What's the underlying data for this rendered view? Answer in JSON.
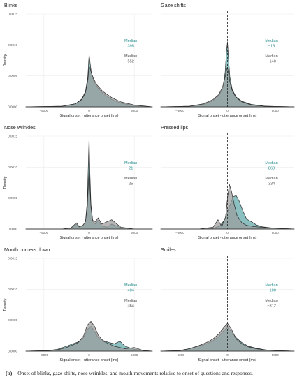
{
  "caption": {
    "label": "(b)",
    "text": "Onset of blinks, gaze shifts, nose wrinkles, and mouth movements relative to onset of questions and responses."
  },
  "colors": {
    "teal_fill": "#5fa8a8",
    "teal_text": "#2a8f8f",
    "grey_fill": "#9b9b9b",
    "grey_text": "#555555",
    "line": "#2a2a2a"
  },
  "chart_data": [
    {
      "type": "area",
      "title": "Blinks",
      "xlabel": "Signal onset - utterance onset (ms)",
      "ylabel": "Density",
      "xlim": [
        -7000,
        7000
      ],
      "ylim": [
        0,
        0.0015
      ],
      "xticks": [
        -5000,
        0,
        5000
      ],
      "xtick_labels": [
        "−5000",
        "0",
        "5000"
      ],
      "yticks": [
        0,
        0.0005,
        0.001,
        0.0015
      ],
      "ytick_labels": [
        "0.0000",
        "0.0005",
        "0.0010",
        "0.0015"
      ],
      "median_labels": [
        {
          "title": "Median",
          "value": "395",
          "color": "teal"
        },
        {
          "title": "Median",
          "value": "552",
          "color": "grey"
        }
      ],
      "series": [
        {
          "color": "teal",
          "x": [
            -7000,
            -3000,
            -1500,
            -800,
            -400,
            -150,
            0,
            100,
            250,
            500,
            900,
            1500,
            2500,
            3500,
            5000,
            7000
          ],
          "y": [
            0,
            1e-05,
            5e-05,
            0.00013,
            0.00025,
            0.00048,
            0.00085,
            0.00072,
            0.00055,
            0.00042,
            0.00032,
            0.00022,
            0.00012,
            6e-05,
            2e-05,
            0
          ]
        },
        {
          "color": "grey",
          "x": [
            -7000,
            -3000,
            -1500,
            -800,
            -400,
            -150,
            0,
            100,
            250,
            500,
            900,
            1500,
            2500,
            3500,
            5000,
            7000
          ],
          "y": [
            0,
            1e-05,
            5e-05,
            0.00012,
            0.00023,
            0.00042,
            0.00065,
            0.00062,
            0.00055,
            0.00045,
            0.00035,
            0.00025,
            0.00015,
            8e-05,
            3e-05,
            0
          ]
        }
      ]
    },
    {
      "type": "area",
      "title": "Gaze shifts",
      "xlabel": "Signal onset - utterance onset (ms)",
      "ylabel": "",
      "xlim": [
        -7000,
        7000
      ],
      "ylim": [
        0,
        0.0015
      ],
      "xticks": [
        -5000,
        0,
        5000
      ],
      "xtick_labels": [
        "−5000",
        "0",
        "5000"
      ],
      "yticks": [],
      "ytick_labels": [],
      "median_labels": [
        {
          "title": "Median",
          "value": "−18",
          "color": "teal"
        },
        {
          "title": "Median",
          "value": "−140",
          "color": "grey"
        }
      ],
      "series": [
        {
          "color": "teal",
          "x": [
            -7000,
            -4000,
            -2500,
            -1500,
            -900,
            -500,
            -250,
            -100,
            0,
            100,
            250,
            500,
            900,
            1500,
            2500,
            4000,
            7000
          ],
          "y": [
            0,
            1e-05,
            4e-05,
            0.0001,
            0.00018,
            0.0003,
            0.00055,
            0.0009,
            0.00105,
            0.0008,
            0.00048,
            0.00028,
            0.00016,
            9e-05,
            4e-05,
            1e-05,
            0
          ]
        },
        {
          "color": "grey",
          "x": [
            -7000,
            -4000,
            -2500,
            -1500,
            -900,
            -500,
            -250,
            -100,
            0,
            100,
            250,
            500,
            900,
            1500,
            2500,
            4000,
            7000
          ],
          "y": [
            0,
            1e-05,
            5e-05,
            0.00012,
            0.0002,
            0.00033,
            0.00048,
            0.0006,
            0.00063,
            0.00055,
            0.0004,
            0.00026,
            0.00015,
            8e-05,
            3e-05,
            1e-05,
            0
          ]
        }
      ]
    },
    {
      "type": "area",
      "title": "Nose wrinkles",
      "xlabel": "Signal onset - utterance onset (ms)",
      "ylabel": "Density",
      "xlim": [
        -7000,
        7000
      ],
      "ylim": [
        0,
        0.0015
      ],
      "xticks": [
        -5000,
        0,
        5000
      ],
      "xtick_labels": [
        "−5000",
        "0",
        "5000"
      ],
      "yticks": [
        0,
        0.0005,
        0.001,
        0.0015
      ],
      "ytick_labels": [
        "0.0000",
        "0.0005",
        "0.0010",
        "0.0015"
      ],
      "median_labels": [
        {
          "title": "Median",
          "value": "21",
          "color": "teal"
        },
        {
          "title": "Median",
          "value": "25",
          "color": "grey"
        }
      ],
      "series": [
        {
          "color": "teal",
          "x": [
            -7000,
            -3000,
            -2000,
            -1400,
            -1100,
            -700,
            -400,
            -200,
            -80,
            0,
            80,
            200,
            400,
            700,
            1000,
            1400,
            2000,
            2500,
            3500,
            5000,
            7000
          ],
          "y": [
            0,
            0,
            1e-05,
            8e-05,
            3e-05,
            5e-05,
            0.00012,
            0.00045,
            0.0011,
            0.0015,
            0.00095,
            0.0004,
            0.00012,
            8e-05,
            0.00014,
            5e-05,
            3e-05,
            8e-05,
            2e-05,
            0,
            0
          ]
        },
        {
          "color": "grey",
          "x": [
            -7000,
            -3000,
            -2000,
            -1400,
            -1100,
            -700,
            -400,
            -200,
            -80,
            0,
            80,
            200,
            400,
            700,
            1000,
            1400,
            2000,
            2500,
            3500,
            5000,
            7000
          ],
          "y": [
            0,
            0,
            2e-05,
            0.0001,
            4e-05,
            6e-05,
            0.00012,
            0.00035,
            0.00075,
            0.00095,
            0.0007,
            0.00035,
            0.00014,
            0.00012,
            0.00018,
            8e-05,
            0.00012,
            0.00015,
            3e-05,
            0,
            0
          ]
        }
      ]
    },
    {
      "type": "area",
      "title": "Pressed lips",
      "xlabel": "Signal onset - utterance onset (ms)",
      "ylabel": "",
      "xlim": [
        -7000,
        7000
      ],
      "ylim": [
        0,
        0.0015
      ],
      "xticks": [
        -5000,
        0,
        5000
      ],
      "xtick_labels": [
        "−5000",
        "0",
        "5000"
      ],
      "yticks": [],
      "ytick_labels": [],
      "median_labels": [
        {
          "title": "Median",
          "value": "860",
          "color": "teal"
        },
        {
          "title": "Median",
          "value": "334",
          "color": "grey"
        }
      ],
      "series": [
        {
          "color": "teal",
          "x": [
            -7000,
            -3000,
            -1500,
            -800,
            -300,
            0,
            300,
            600,
            900,
            1200,
            1600,
            2000,
            2500,
            3000,
            3500,
            4500,
            5500,
            7000
          ],
          "y": [
            0,
            0,
            1e-05,
            5e-05,
            0.00015,
            0.00028,
            0.0004,
            0.00052,
            0.00054,
            0.00046,
            0.0003,
            0.00016,
            0.00012,
            7e-05,
            4e-05,
            2e-05,
            1e-05,
            0
          ]
        },
        {
          "color": "grey",
          "x": [
            -7000,
            -3000,
            -1500,
            -1000,
            -600,
            -200,
            0,
            200,
            400,
            700,
            1000,
            1500,
            2000,
            2800,
            3500,
            4500,
            5500,
            7000
          ],
          "y": [
            0,
            0,
            3e-05,
            0.00015,
            4e-05,
            0.0002,
            0.0005,
            0.00072,
            0.00062,
            0.0004,
            0.00022,
            0.0001,
            6e-05,
            4e-05,
            3e-05,
            2e-05,
            1e-05,
            0
          ]
        }
      ]
    },
    {
      "type": "area",
      "title": "Mouth corners down",
      "xlabel": "Signal onset - utterance onset (ms)",
      "ylabel": "Density",
      "xlim": [
        -7000,
        7000
      ],
      "ylim": [
        0,
        0.0015
      ],
      "xticks": [
        -5000,
        0,
        5000
      ],
      "xtick_labels": [
        "−5000",
        "0",
        "5000"
      ],
      "yticks": [
        0,
        0.0005,
        0.001,
        0.0015
      ],
      "ytick_labels": [
        "0.0000",
        "0.0005",
        "0.0010",
        "0.0015"
      ],
      "median_labels": [
        {
          "title": "Median",
          "value": "404",
          "color": "teal"
        },
        {
          "title": "Median",
          "value": "364",
          "color": "grey"
        }
      ],
      "series": [
        {
          "color": "teal",
          "x": [
            -7000,
            -4500,
            -3500,
            -2500,
            -1800,
            -1200,
            -600,
            -200,
            200,
            600,
            1000,
            1600,
            2200,
            2800,
            3400,
            4000,
            5000,
            6000,
            7000
          ],
          "y": [
            0,
            1e-05,
            3e-05,
            8e-05,
            0.00012,
            0.00015,
            0.00022,
            0.00035,
            0.0004,
            0.00032,
            0.00022,
            0.00017,
            0.00014,
            0.00012,
            0.00016,
            8e-05,
            3e-05,
            1e-05,
            0
          ]
        },
        {
          "color": "grey",
          "x": [
            -7000,
            -4500,
            -3500,
            -2500,
            -1800,
            -1200,
            -600,
            -200,
            200,
            600,
            1000,
            1600,
            2200,
            2800,
            3400,
            4000,
            5000,
            6000,
            7000
          ],
          "y": [
            0,
            1e-05,
            2e-05,
            6e-05,
            0.0001,
            0.00014,
            0.00025,
            0.00042,
            0.00048,
            0.0004,
            0.00026,
            0.00016,
            0.00012,
            8e-05,
            6e-05,
            4e-05,
            6e-05,
            1e-05,
            0
          ]
        }
      ]
    },
    {
      "type": "area",
      "title": "Smiles",
      "xlabel": "Signal onset - utterance onset (ms)",
      "ylabel": "",
      "xlim": [
        -7000,
        7000
      ],
      "ylim": [
        0,
        0.0015
      ],
      "xticks": [
        -5000,
        0,
        5000
      ],
      "xtick_labels": [
        "−5000",
        "0",
        "5000"
      ],
      "yticks": [],
      "ytick_labels": [],
      "median_labels": [
        {
          "title": "Median",
          "value": "−100",
          "color": "teal"
        },
        {
          "title": "Median",
          "value": "−312",
          "color": "grey"
        }
      ],
      "series": [
        {
          "color": "teal",
          "x": [
            -7000,
            -5000,
            -4000,
            -3000,
            -2200,
            -1500,
            -900,
            -400,
            0,
            400,
            900,
            1500,
            2200,
            3000,
            4000,
            5000,
            7000
          ],
          "y": [
            0,
            1e-05,
            4e-05,
            8e-05,
            0.00012,
            0.00017,
            0.00024,
            0.00033,
            0.00038,
            0.00032,
            0.00022,
            0.00014,
            8e-05,
            5e-05,
            2e-05,
            1e-05,
            0
          ]
        },
        {
          "color": "grey",
          "x": [
            -7000,
            -5000,
            -4000,
            -3000,
            -2200,
            -1500,
            -900,
            -400,
            0,
            400,
            900,
            1500,
            2200,
            3000,
            4000,
            5000,
            7000
          ],
          "y": [
            0,
            1e-05,
            4e-05,
            9e-05,
            0.00014,
            0.0002,
            0.00028,
            0.00038,
            0.00045,
            0.00036,
            0.0002,
            0.00012,
            7e-05,
            4e-05,
            2e-05,
            1e-05,
            0
          ]
        }
      ]
    }
  ]
}
